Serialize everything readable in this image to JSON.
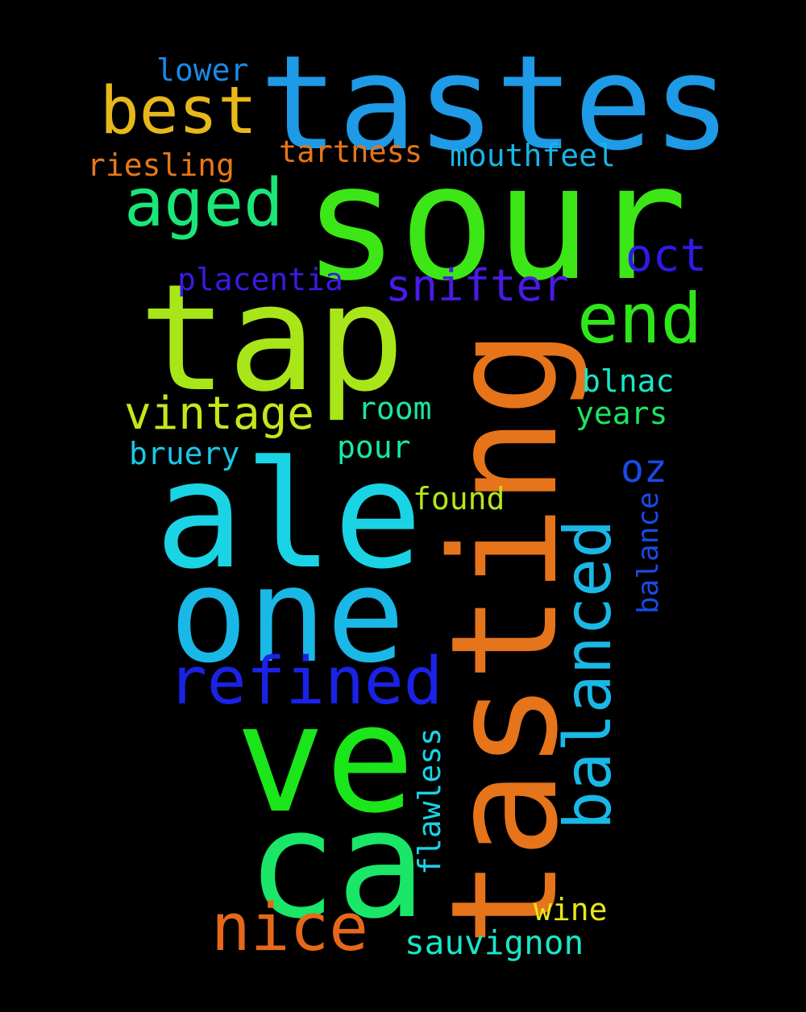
{
  "background": "#000000",
  "words": [
    {
      "key": "tastes",
      "text": "tastes",
      "color": "#1e9ae6"
    },
    {
      "key": "sour",
      "text": "sour",
      "color": "#3de616"
    },
    {
      "key": "tap",
      "text": "tap",
      "color": "#a8e61a"
    },
    {
      "key": "tasting",
      "text": "tasting",
      "color": "#e6741a"
    },
    {
      "key": "ale",
      "text": "ale",
      "color": "#1ad4e6"
    },
    {
      "key": "one",
      "text": "one",
      "color": "#1ab8e6"
    },
    {
      "key": "ve",
      "text": "ve",
      "color": "#1ae61a"
    },
    {
      "key": "ca",
      "text": "ca",
      "color": "#1ae668"
    },
    {
      "key": "best",
      "text": "best",
      "color": "#e6b81a"
    },
    {
      "key": "aged",
      "text": "aged",
      "color": "#1ae678"
    },
    {
      "key": "end",
      "text": "end",
      "color": "#2ee61a"
    },
    {
      "key": "refined",
      "text": "refined",
      "color": "#1a22e6"
    },
    {
      "key": "balanced",
      "text": "balanced",
      "color": "#1ab8e6"
    },
    {
      "key": "nice",
      "text": "nice",
      "color": "#e6681a"
    },
    {
      "key": "vintage",
      "text": "vintage",
      "color": "#c6e61a"
    },
    {
      "key": "snifter",
      "text": "snifter",
      "color": "#4a1ae6"
    },
    {
      "key": "oct",
      "text": "oct",
      "color": "#2e1ae6"
    },
    {
      "key": "lower",
      "text": "lower",
      "color": "#1a8ae6"
    },
    {
      "key": "tartness",
      "text": "tartness",
      "color": "#e6741a"
    },
    {
      "key": "mouthfeel",
      "text": "mouthfeel",
      "color": "#1ab4e6"
    },
    {
      "key": "riesling",
      "text": "riesling",
      "color": "#e6781a"
    },
    {
      "key": "placentia",
      "text": "placentia",
      "color": "#3a1ae6"
    },
    {
      "key": "blnac",
      "text": "blnac",
      "color": "#1ae6c8"
    },
    {
      "key": "room",
      "text": "room",
      "color": "#1ae6a0"
    },
    {
      "key": "years",
      "text": "years",
      "color": "#1ae660"
    },
    {
      "key": "pour",
      "text": "pour",
      "color": "#1ae6a8"
    },
    {
      "key": "bruery",
      "text": "bruery",
      "color": "#1ac8e6"
    },
    {
      "key": "oz",
      "text": "oz",
      "color": "#1a4ae6"
    },
    {
      "key": "found",
      "text": "found",
      "color": "#b4e61a"
    },
    {
      "key": "balance",
      "text": "balance",
      "color": "#1a4ae6"
    },
    {
      "key": "flawless",
      "text": "flawless",
      "color": "#1ad4e6"
    },
    {
      "key": "wine",
      "text": "wine",
      "color": "#e6e61a"
    },
    {
      "key": "sauvignon",
      "text": "sauvignon",
      "color": "#1ae6c8"
    }
  ]
}
